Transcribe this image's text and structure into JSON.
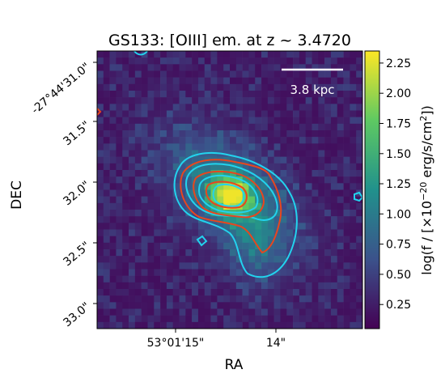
{
  "chart_data": {
    "type": "heatmap",
    "title": "GS133: [OIII] em. at z ~ 3.4720",
    "xlabel": "RA",
    "ylabel": "DEC",
    "x_ticks": [
      "53°01'15\"",
      "14\""
    ],
    "y_ticks": [
      "-27°44'31.0\"",
      "31.5\"",
      "32.0\"",
      "32.5\"",
      "33.0\""
    ],
    "colorbar": {
      "label_prefix": "log(f / [×10",
      "label_exp": "−20",
      "label_suffix": " erg/s/cm",
      "label_sq": "2",
      "label_end": "])",
      "ticks": [
        "2.25",
        "2.00",
        "1.75",
        "1.50",
        "1.25",
        "1.00",
        "0.75",
        "0.50",
        "0.25"
      ],
      "tick_values": [
        2.25,
        2.0,
        1.75,
        1.5,
        1.25,
        1.0,
        0.75,
        0.5,
        0.25
      ],
      "range": [
        0.05,
        2.35
      ],
      "colormap": "viridis"
    },
    "scale_bar_label": "3.8 kpc",
    "peak_value": 2.3,
    "background_value": 0.15,
    "contour_colors": {
      "cyan": "#22d3ee",
      "red": "#e8461e"
    }
  }
}
